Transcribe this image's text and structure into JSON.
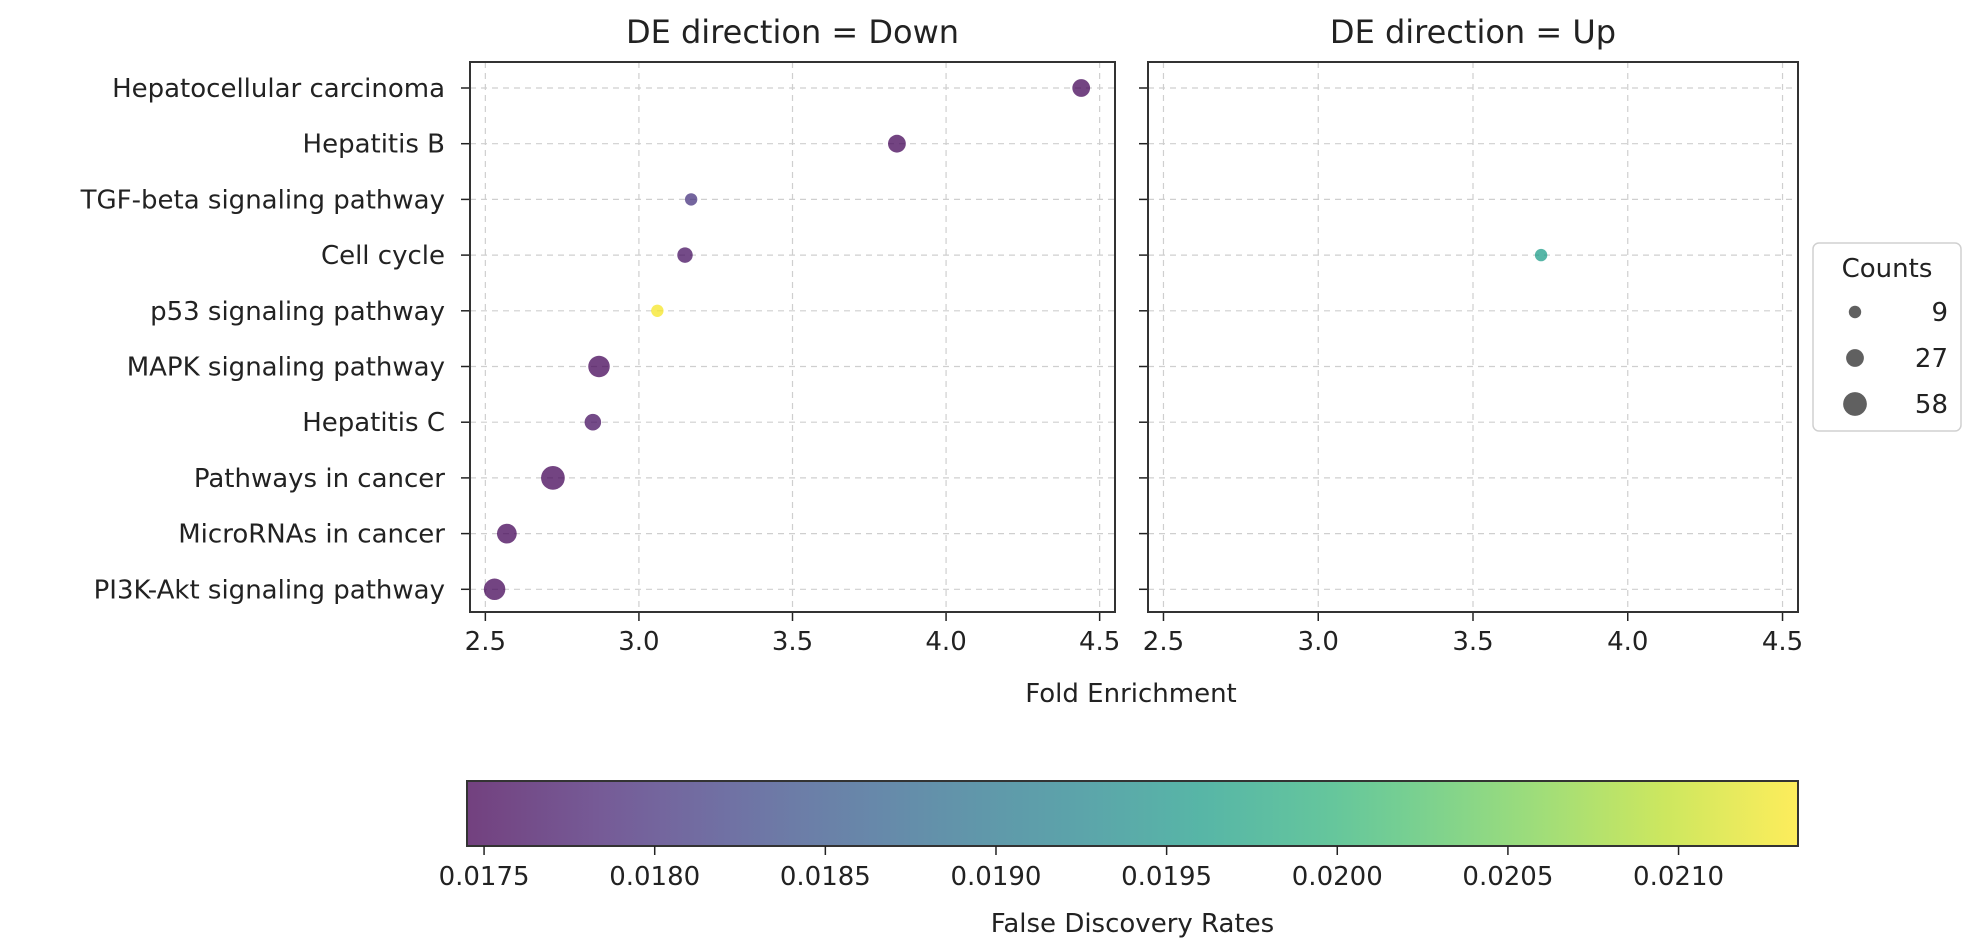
{
  "chart_data": {
    "type": "scatter",
    "xlabel": "Fold Enrichment",
    "xlim": [
      2.45,
      4.55
    ],
    "x_ticks": [
      "2.5",
      "3.0",
      "3.5",
      "4.0",
      "4.5"
    ],
    "categories": [
      "Hepatocellular carcinoma",
      "Hepatitis B",
      "TGF-beta signaling pathway",
      "Cell cycle",
      "p53 signaling pathway",
      "MAPK signaling pathway",
      "Hepatitis C",
      "Pathways in cancer",
      "MicroRNAs in cancer",
      "PI3K-Akt signaling pathway"
    ],
    "panels": [
      {
        "title": "DE direction = Down",
        "points": [
          {
            "pathway": "Hepatocellular carcinoma",
            "fold_enrichment": 4.44,
            "count": 27,
            "fdr": 0.0175
          },
          {
            "pathway": "Hepatitis B",
            "fold_enrichment": 3.84,
            "count": 27,
            "fdr": 0.0175
          },
          {
            "pathway": "TGF-beta signaling pathway",
            "fold_enrichment": 3.17,
            "count": 9,
            "fdr": 0.018
          },
          {
            "pathway": "Cell cycle",
            "fold_enrichment": 3.15,
            "count": 18,
            "fdr": 0.0176
          },
          {
            "pathway": "p53 signaling pathway",
            "fold_enrichment": 3.06,
            "count": 9,
            "fdr": 0.0213
          },
          {
            "pathway": "MAPK signaling pathway",
            "fold_enrichment": 2.87,
            "count": 45,
            "fdr": 0.0175
          },
          {
            "pathway": "Hepatitis C",
            "fold_enrichment": 2.85,
            "count": 22,
            "fdr": 0.0176
          },
          {
            "pathway": "Pathways in cancer",
            "fold_enrichment": 2.72,
            "count": 58,
            "fdr": 0.0175
          },
          {
            "pathway": "MicroRNAs in cancer",
            "fold_enrichment": 2.57,
            "count": 36,
            "fdr": 0.0175
          },
          {
            "pathway": "PI3K-Akt signaling pathway",
            "fold_enrichment": 2.53,
            "count": 45,
            "fdr": 0.0175
          }
        ]
      },
      {
        "title": "DE direction = Up",
        "points": [
          {
            "pathway": "Cell cycle",
            "fold_enrichment": 3.72,
            "count": 9,
            "fdr": 0.0196
          }
        ]
      }
    ],
    "size_legend": {
      "title": "Counts",
      "entries": [
        {
          "label": "9",
          "count": 9
        },
        {
          "label": "27",
          "count": 27
        },
        {
          "label": "58",
          "count": 58
        }
      ]
    },
    "colorbar": {
      "label": "False Discovery Rates",
      "range": [
        0.01745,
        0.02135
      ],
      "ticks": [
        {
          "value": 0.0175,
          "label": "0.0175"
        },
        {
          "value": 0.018,
          "label": "0.0180"
        },
        {
          "value": 0.0185,
          "label": "0.0185"
        },
        {
          "value": 0.019,
          "label": "0.0190"
        },
        {
          "value": 0.0195,
          "label": "0.0195"
        },
        {
          "value": 0.02,
          "label": "0.0200"
        },
        {
          "value": 0.0205,
          "label": "0.0205"
        },
        {
          "value": 0.021,
          "label": "0.0210"
        }
      ],
      "colormap": "viridis",
      "alpha": 0.75
    },
    "grid": true,
    "legend_position": "right"
  }
}
